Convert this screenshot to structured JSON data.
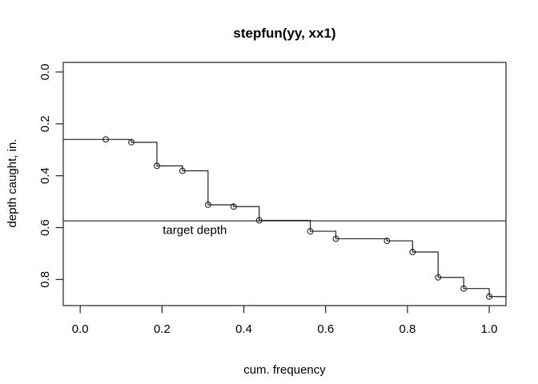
{
  "figure": {
    "title": "stepfun(yy, xx1)",
    "xlabel": "cum. frequency",
    "ylabel": "depth caught, in.",
    "annotation_label": "target depth",
    "colors": {
      "background": "#ffffff",
      "foreground": "#222222",
      "text": "#000000"
    }
  },
  "chart_data": {
    "type": "line",
    "subtype": "step-function",
    "title": "stepfun(yy, xx1)",
    "xlabel": "cum. frequency",
    "ylabel": "depth caught, in.",
    "grid": false,
    "legend": false,
    "marker": "open-circle",
    "x_tick_values": [
      0.0,
      0.2,
      0.4,
      0.6,
      0.8,
      1.0
    ],
    "x_tick_labels": [
      "0.0",
      "0.2",
      "0.4",
      "0.6",
      "0.8",
      "1.0"
    ],
    "y_tick_values": [
      0.0,
      0.2,
      0.4,
      0.6,
      0.8
    ],
    "y_tick_labels": [
      "0.0",
      "0.2",
      "0.4",
      "0.6",
      "0.8"
    ],
    "y_axis_reversed": true,
    "xlim": [
      -0.0415,
      1.0409
    ],
    "ylim": [
      -0.037,
      0.9007
    ],
    "series": [
      {
        "name": "stepfun(yy, xx1)",
        "initial_level": 0.26,
        "knots_x": [
          0.0625,
          0.125,
          0.1875,
          0.25,
          0.3125,
          0.375,
          0.4375,
          0.5625,
          0.625,
          0.75,
          0.8125,
          0.875,
          0.9375,
          1.0
        ],
        "levels_y": [
          0.26,
          0.271,
          0.362,
          0.381,
          0.512,
          0.519,
          0.572,
          0.614,
          0.643,
          0.651,
          0.694,
          0.792,
          0.835,
          0.866
        ]
      }
    ],
    "reference_line": {
      "axis": "y",
      "value": 0.574,
      "label": "target depth",
      "label_x": 0.28
    }
  }
}
